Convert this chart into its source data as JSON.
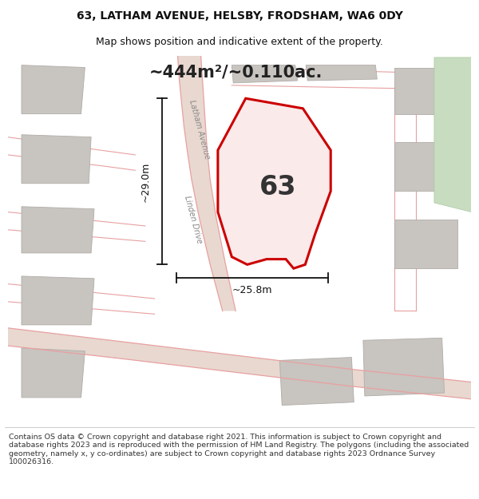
{
  "title_line1": "63, LATHAM AVENUE, HELSBY, FRODSHAM, WA6 0DY",
  "title_line2": "Map shows position and indicative extent of the property.",
  "area_text": "~444m²/~0.110ac.",
  "label_63": "63",
  "label_29m": "~29.0m",
  "label_258m": "~25.8m",
  "footer": "Contains OS data © Crown copyright and database right 2021. This information is subject to Crown copyright and database rights 2023 and is reproduced with the permission of HM Land Registry. The polygons (including the associated geometry, namely x, y co-ordinates) are subject to Crown copyright and database rights 2023 Ordnance Survey 100026316.",
  "bg_color": "#f0ede8",
  "title_bg": "#ffffff",
  "footer_bg": "#ffffff",
  "road_fill_color": "#e8d8d0",
  "road_edge_color": "#e8a0a0",
  "plot_outline_color": "#cc0000",
  "plot_fill_color": "#faeaea",
  "grey_block_color": "#c8c4c0",
  "grey_block_edge": "#b0aca8",
  "green_strip_color": "#c8ddc0",
  "green_strip_edge": "#a8c8a0",
  "dim_line_color": "#111111",
  "label_color": "#222222",
  "road_label_color": "#888888",
  "latham_avenue_label": "Latham Avenue",
  "linden_drive_label": "Linden Drive",
  "map_xlim": [
    0,
    600
  ],
  "map_ylim": [
    0,
    470
  ],
  "title_fontsize": 10,
  "subtitle_fontsize": 9,
  "area_fontsize": 15,
  "num_fontsize": 24,
  "dim_fontsize": 9,
  "road_label_fontsize": 7,
  "footer_fontsize": 6.8
}
